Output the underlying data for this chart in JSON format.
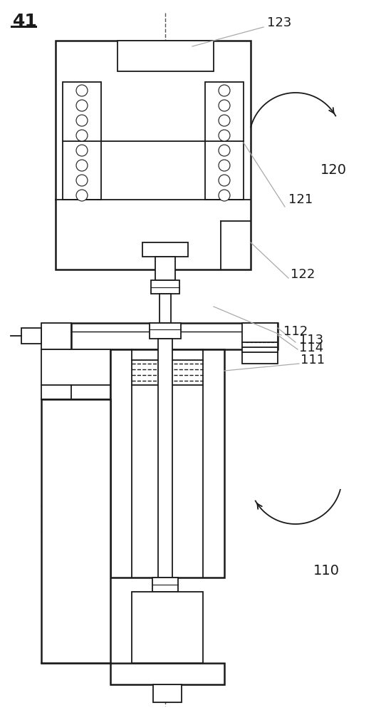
{
  "bg_color": "#ffffff",
  "line_color": "#1a1a1a",
  "gray_line": "#aaaaaa",
  "fig_label": "41"
}
